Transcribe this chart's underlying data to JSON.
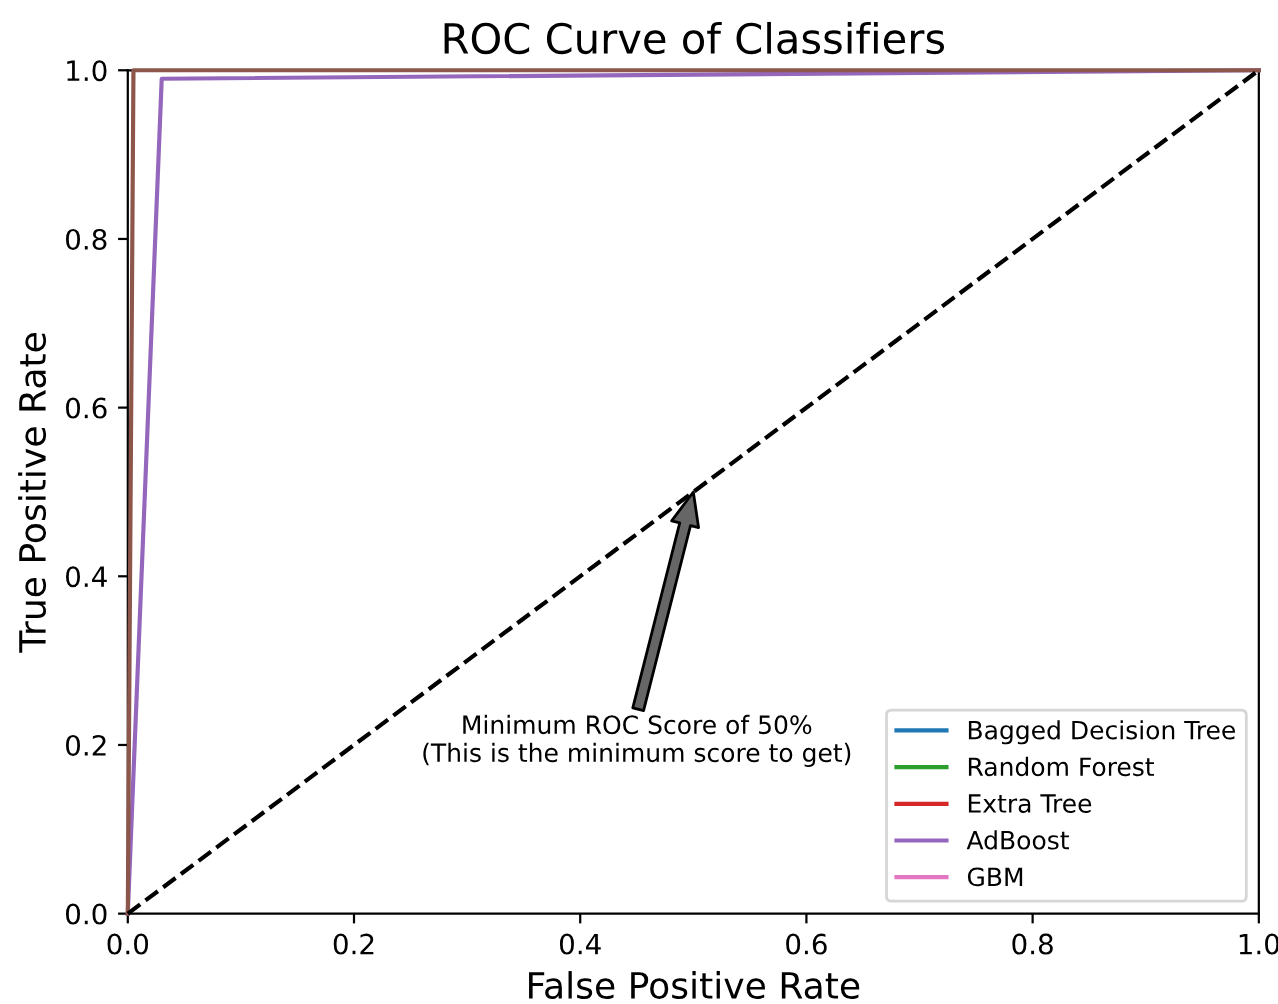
{
  "chart_data": {
    "type": "line",
    "title": "ROC Curve of Classifiers",
    "xlabel": "False Positive Rate",
    "ylabel": "True Positive Rate",
    "xlim": [
      0,
      1
    ],
    "ylim": [
      0,
      1
    ],
    "xticks": [
      {
        "value": 0,
        "label": "0.0"
      },
      {
        "value": 0.2,
        "label": "0.2"
      },
      {
        "value": 0.4,
        "label": "0.4"
      },
      {
        "value": 0.6,
        "label": "0.6"
      },
      {
        "value": 0.8,
        "label": "0.8"
      },
      {
        "value": 1,
        "label": "1.0"
      }
    ],
    "yticks": [
      {
        "value": 0,
        "label": "0.0"
      },
      {
        "value": 0.2,
        "label": "0.2"
      },
      {
        "value": 0.4,
        "label": "0.4"
      },
      {
        "value": 0.6,
        "label": "0.6"
      },
      {
        "value": 0.8,
        "label": "0.8"
      },
      {
        "value": 1,
        "label": "1.0"
      }
    ],
    "grid": false,
    "legend": "bottom right",
    "marker": "none",
    "line_style": "solid",
    "series": [
      {
        "name": "Bagged Decision Tree",
        "color": "#1f77b4"
      },
      {
        "color": "#ff7f0e"
      },
      {
        "name": "Random Forest",
        "color": "#2ca02c"
      },
      {
        "name": "Extra Tree",
        "color": "#d62728"
      },
      {
        "name": "AdBoost",
        "color": "#9467bd",
        "x": [
          0,
          0.03,
          1
        ],
        "values": [
          0,
          0.99,
          1
        ]
      },
      {
        "color": "#8c564b",
        "x": [
          0,
          0.005,
          1
        ],
        "values": [
          0,
          1,
          1
        ]
      },
      {
        "name": "GBM",
        "color": "#e377c2"
      },
      {
        "color": "#7f7f7f"
      },
      {
        "color": "#000000",
        "x": [
          0,
          1
        ],
        "values": [
          0,
          1
        ],
        "line_style": "dashed"
      }
    ],
    "annotations": [
      "Minimum ROC Score of 50%\n(This is the minimum score to get)"
    ]
  }
}
